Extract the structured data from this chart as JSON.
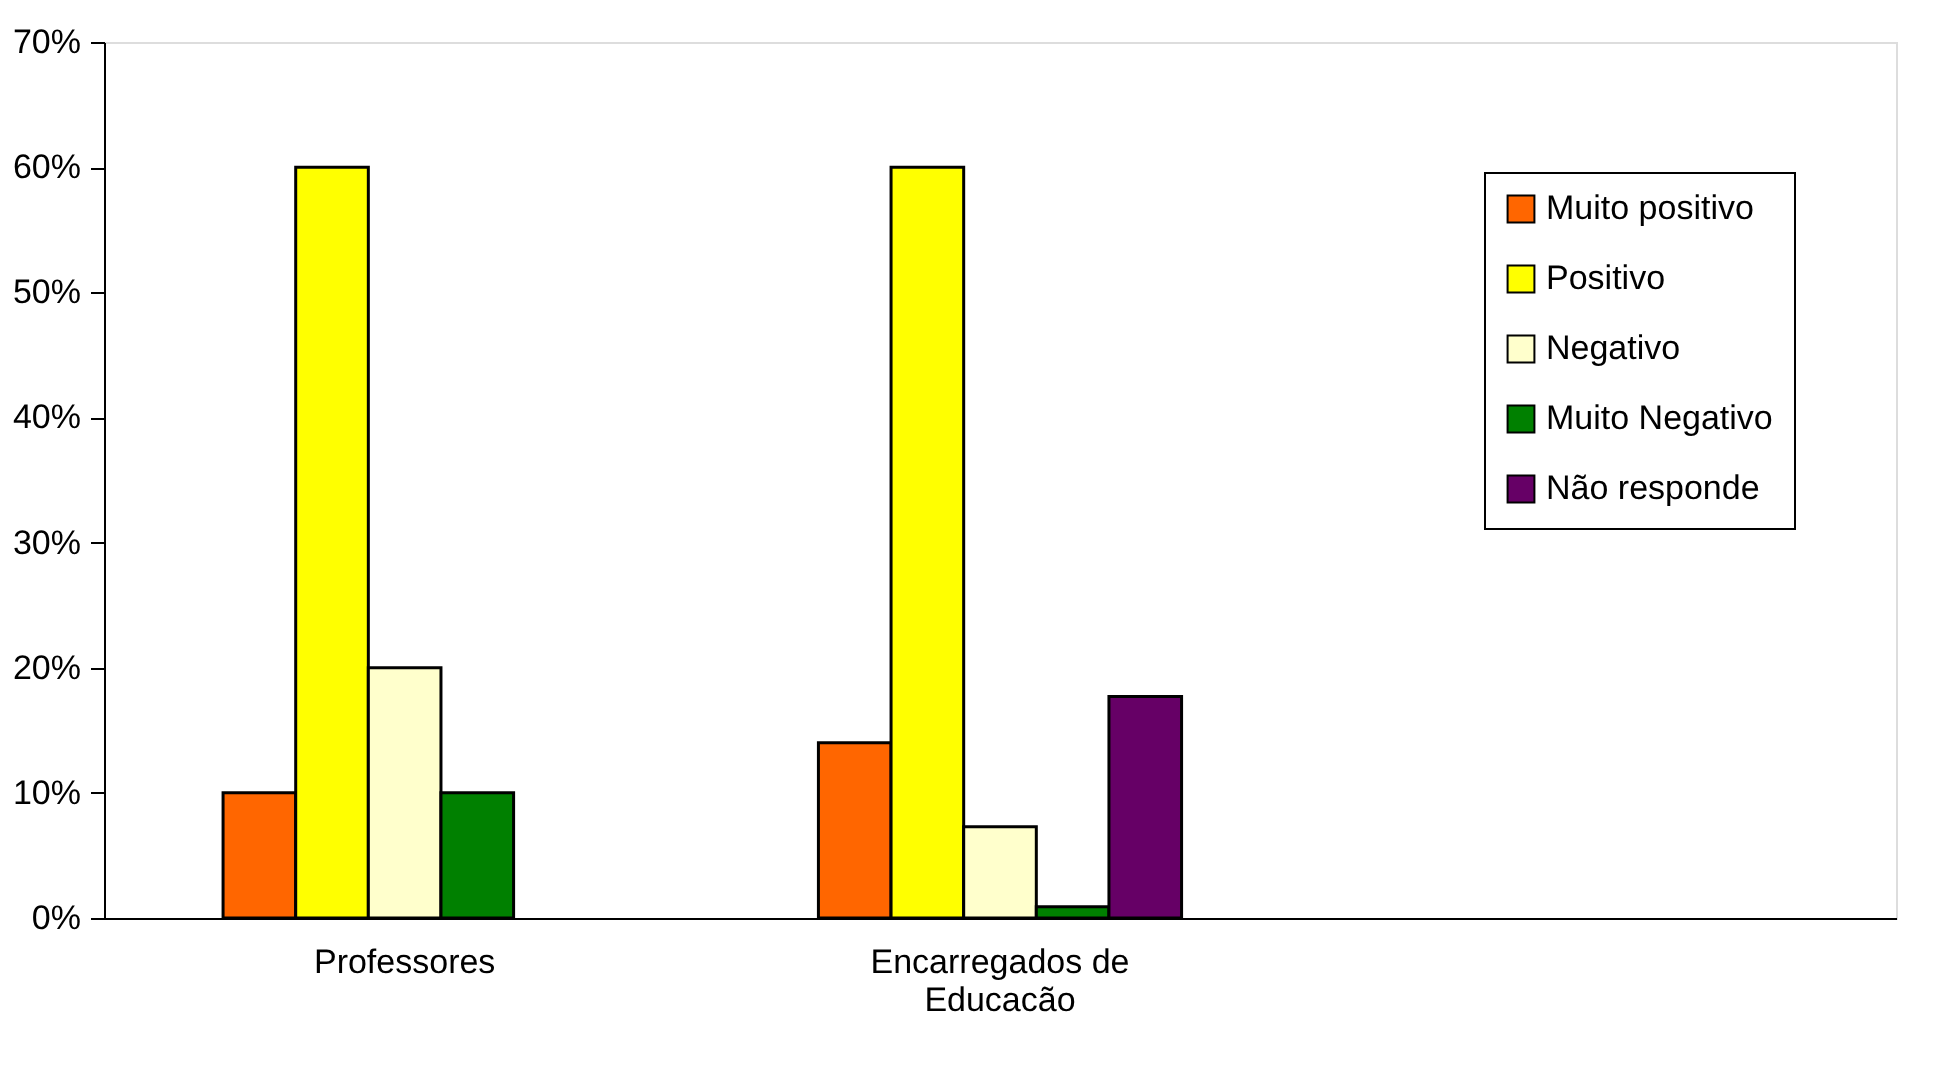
{
  "chart_data": {
    "type": "bar",
    "categories": [
      "Professores",
      "Encarregados de Educacão",
      null
    ],
    "series": [
      {
        "name": "Muito positivo",
        "color": "#ff6600",
        "values": [
          10,
          14,
          null
        ]
      },
      {
        "name": "Positivo",
        "color": "#ffff00",
        "values": [
          60,
          60,
          null
        ]
      },
      {
        "name": "Negativo",
        "color": "#ffffcc",
        "values": [
          20,
          7.3,
          null
        ]
      },
      {
        "name": "Muito Negativo",
        "color": "#008000",
        "values": [
          10,
          0.9,
          null
        ]
      },
      {
        "name": "Não responde",
        "color": "#660066",
        "values": [
          null,
          17.7,
          null
        ]
      }
    ],
    "ylim": [
      0,
      70
    ],
    "yticks": [
      {
        "value": 0,
        "label": "0%"
      },
      {
        "value": 10,
        "label": "10%"
      },
      {
        "value": 20,
        "label": "20%"
      },
      {
        "value": 30,
        "label": "30%"
      },
      {
        "value": 40,
        "label": "40%"
      },
      {
        "value": 50,
        "label": "50%"
      },
      {
        "value": 60,
        "label": "60%"
      },
      {
        "value": 70,
        "label": "70%"
      }
    ],
    "grid": false,
    "legend": "right"
  }
}
